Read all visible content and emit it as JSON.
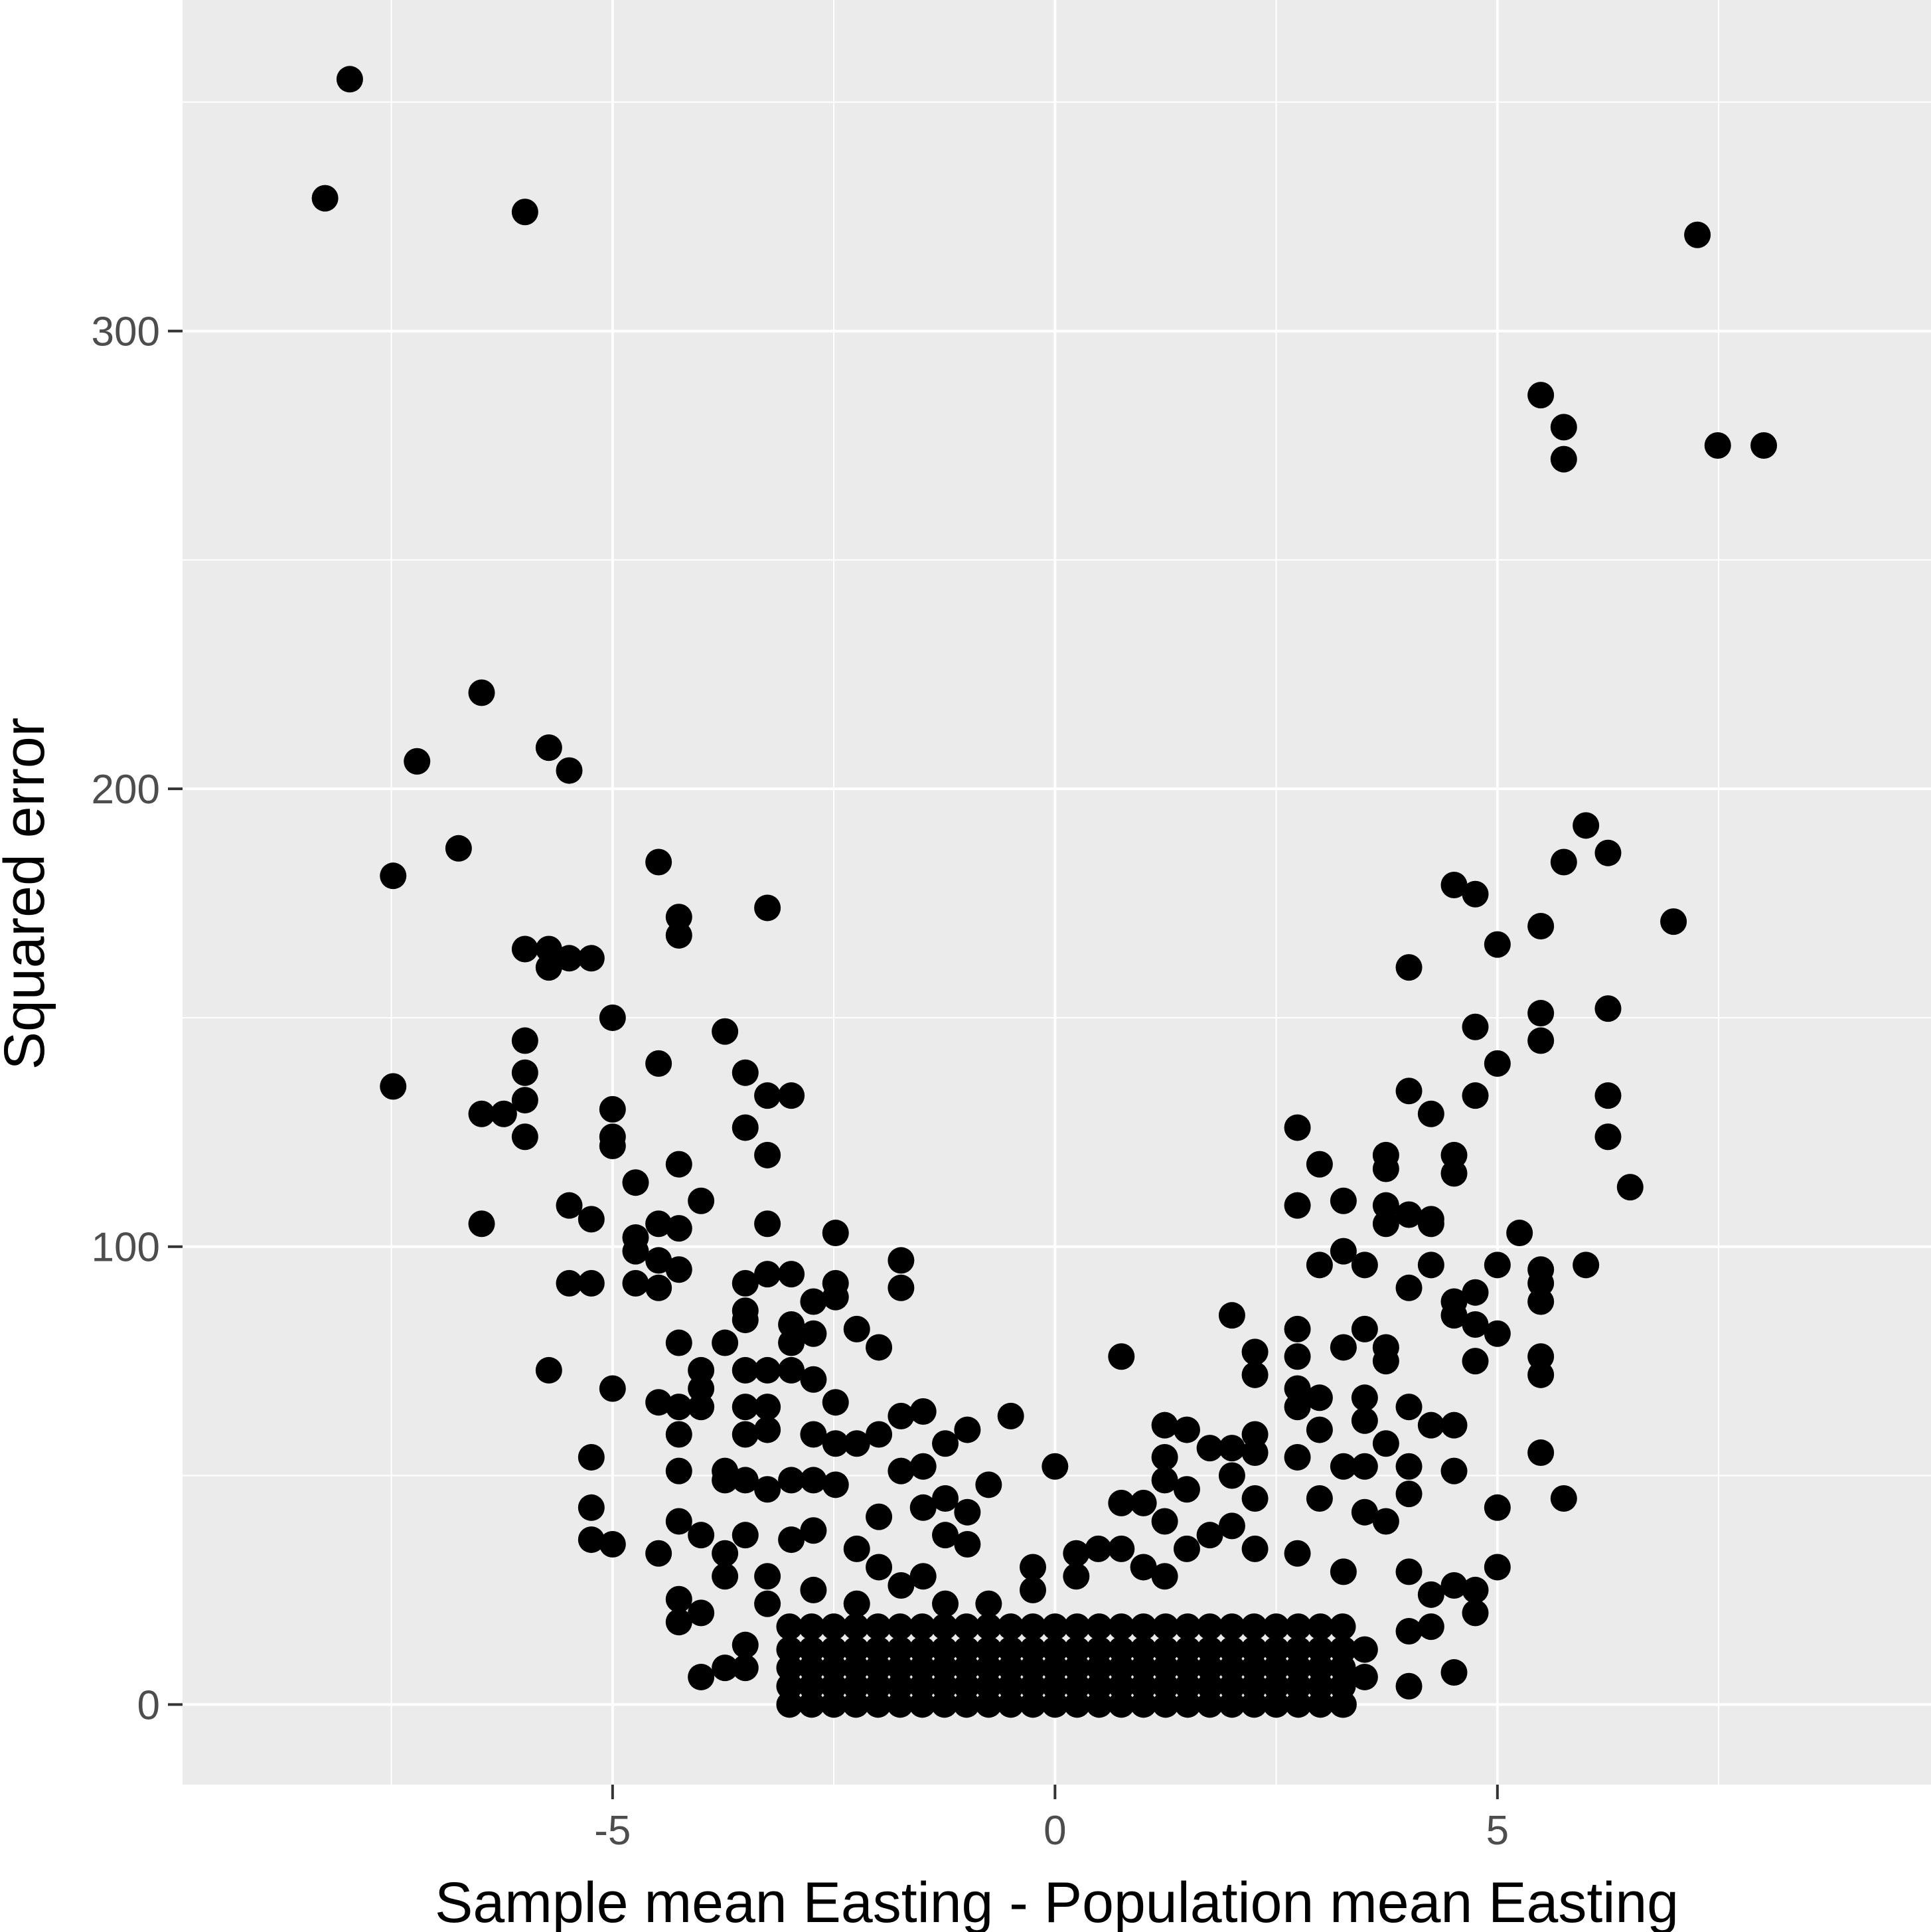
{
  "chart_data": {
    "type": "scatter",
    "x_label": "Sample mean Easting - Population mean Easting",
    "y_label": "Squared error",
    "color": "#000000",
    "xlim": [
      -9.86,
      9.9
    ],
    "ylim": [
      -17.5,
      372.3
    ],
    "xticks": [
      -5,
      0,
      5
    ],
    "yticks": [
      0,
      100,
      200,
      300
    ],
    "x_minor_grid": [
      -7.5,
      -2.5,
      2.5,
      7.5
    ],
    "y_minor_grid": [
      50,
      150,
      250,
      350
    ],
    "grid": true,
    "x": [
      -8.25,
      -7.97,
      -5.99,
      7.26,
      5.49,
      5.75,
      5.75,
      7.49,
      8.01,
      -6.48,
      -7.21,
      -5.72,
      -5.49,
      -6.74,
      -7.48,
      -4.48,
      -4.25,
      -4.25,
      -3.25,
      -5.99,
      -5.72,
      -5.72,
      -5.49,
      -5.24,
      -5.0,
      -3.73,
      -5.99,
      -5.99,
      -4.48,
      -3.5,
      -7.48,
      -5.99,
      -3.25,
      -2.98,
      -6.48,
      -6.23,
      -5.0,
      -5.99,
      -5.0,
      -5.0,
      -3.5,
      -3.25,
      -4.25,
      -4.74,
      -5.49,
      -4.0,
      -6.48,
      -5.24,
      -4.48,
      -4.25,
      -3.25,
      -4.74,
      -4.74,
      -4.48,
      -4.25,
      -5.49,
      -5.24,
      -4.74,
      -4.48,
      -3.5,
      -3.25,
      -2.98,
      -2.48,
      -2.48,
      -2.48,
      -2.73,
      -1.74,
      -1.74,
      -3.5,
      -3.5,
      -2.98,
      -2.98,
      -2.73,
      -2.24,
      -1.99,
      -4.25,
      -3.73,
      -5.72,
      -5.0,
      -4.0,
      -4.0,
      -3.5,
      -3.25,
      -2.98,
      -2.73,
      -4.48,
      -4.25,
      -4.0,
      -3.5,
      -2.48,
      -4.25,
      -5.24,
      -4.25,
      -3.73,
      -5.24,
      -5.24,
      -5.0,
      -4.48,
      -4.25,
      -4.0,
      -4.25,
      -4.25,
      -4.0,
      -4.0,
      -3.73,
      -3.5,
      -3.5,
      6.0,
      5.75,
      6.25,
      4.51,
      4.75,
      6.99,
      5.49,
      5.0,
      4.0,
      5.49,
      6.25,
      4.75,
      5.49,
      5.0,
      4.0,
      4.75,
      6.25,
      4.25,
      2.74,
      6.25,
      3.74,
      4.51,
      2.99,
      3.74,
      4.51,
      6.5,
      2.74,
      3.26,
      3.74,
      4.0,
      3.74,
      4.25,
      4.25,
      5.25,
      3.26,
      2.99,
      3.5,
      4.25,
      5.0,
      5.49,
      6.0,
      4.0,
      5.49,
      4.75,
      5.49,
      4.51,
      4.51,
      2.0,
      4.75,
      2.74,
      3.5,
      5.0,
      3.26,
      3.74,
      2.26,
      0.75,
      5.49,
      4.75,
      3.74,
      2.74,
      2.26,
      5.49,
      2.74,
      2.99,
      3.5,
      4.0,
      2.74,
      3.5,
      4.25,
      4.51,
      1.24,
      1.49,
      2.99,
      2.26,
      3.74,
      5.49,
      1.75,
      2.0,
      2.26,
      2.74,
      1.24,
      3.5,
      4.51,
      4.0,
      3.26,
      2.0,
      1.24,
      1.49,
      5.75,
      5.0,
      2.26,
      2.99,
      4.0,
      0.75,
      1.0,
      1.24,
      2.0,
      3.5,
      3.74,
      1.49,
      1.75,
      2.26,
      2.74,
      0.49,
      0.75,
      0.24,
      5.0,
      4.0,
      3.26,
      4.51,
      4.75,
      4.25,
      4.75,
      4.0,
      4.25,
      3.5,
      3.26,
      3.5,
      4.51,
      4.0,
      3.26,
      -0.5,
      -0.99,
      -1.49,
      -1.74,
      -1.24,
      -1.99,
      -2.24,
      -1.74,
      -1.49,
      -0.75,
      -1.24,
      -1.49,
      -0.99,
      -1.99,
      -1.24,
      -0.99,
      -2.73,
      -2.48,
      -2.73,
      -2.48,
      -3.25,
      -3.25,
      -3.5,
      -3.73,
      -3.5,
      -3.25,
      -2.98,
      -3.5,
      -3.73,
      -2.98,
      -2.73,
      -2.24,
      -1.99,
      -1.74,
      -1.49,
      -3.25,
      -3.73,
      -3.25,
      -2.73,
      -2.24,
      -1.24,
      -0.75,
      -0.25,
      -0.25,
      0.0,
      0.24,
      1.24,
      1.0,
      -3,
      -2.75,
      -2.5,
      -2.25,
      -2,
      -1.75,
      -1.5,
      -1.25,
      -1,
      -0.75,
      -0.5,
      -0.25,
      0,
      0.25,
      0.5,
      0.75,
      1,
      1.25,
      1.5,
      1.75,
      2,
      2.25,
      2.5,
      2.75,
      3,
      3.25,
      -3,
      -2.75,
      -2.5,
      -2.25,
      -2,
      -1.75,
      -1.5,
      -1.25,
      -1,
      -0.75,
      -0.5,
      -0.25,
      0,
      0.25,
      0.5,
      0.75,
      1,
      1.25,
      1.5,
      1.75,
      2,
      2.25,
      2.5,
      2.75,
      3,
      3.25,
      -3,
      -2.75,
      -2.5,
      -2.25,
      -2,
      -1.75,
      -1.5,
      -1.25,
      -1,
      -0.75,
      -0.5,
      -0.25,
      0,
      0.25,
      0.5,
      0.75,
      1,
      1.25,
      1.5,
      1.75,
      2,
      2.25,
      2.5,
      2.75,
      3,
      3.25,
      -3,
      -2.75,
      -2.5,
      -2.25,
      -2,
      -1.75,
      -1.5,
      -1.25,
      -1,
      -0.75,
      -0.5,
      -0.25,
      0,
      0.25,
      0.5,
      0.75,
      1,
      1.25,
      1.5,
      1.75,
      2,
      2.25,
      2.5,
      2.75,
      3,
      3.25,
      -3,
      -2.75,
      -2.5,
      -2.25,
      -2,
      -1.75,
      -1.5,
      -1.25,
      -1,
      -0.75,
      -0.5,
      -0.25,
      0,
      0.25,
      0.5,
      0.75,
      1,
      1.25,
      1.5,
      1.75,
      2,
      2.25,
      2.5,
      2.75,
      3,
      3.25
    ],
    "values": [
      329,
      355,
      326,
      321,
      286,
      279,
      272,
      275,
      275,
      221,
      206,
      209,
      204,
      187,
      181,
      184,
      172,
      168,
      174,
      165,
      165,
      161,
      163,
      163,
      150,
      147,
      145,
      138,
      140,
      138,
      135,
      132,
      133,
      133,
      129,
      129,
      130,
      124,
      124,
      122,
      126,
      120,
      118,
      114,
      109,
      110,
      105,
      106,
      105,
      104,
      105,
      102,
      99,
      97,
      95,
      92,
      92,
      92,
      91,
      92,
      94,
      94,
      103,
      92,
      89,
      88,
      97,
      91,
      86,
      84,
      83,
      79,
      81,
      82,
      78,
      79,
      79,
      73,
      69,
      73,
      69,
      73,
      73,
      73,
      71,
      66,
      65,
      65,
      65,
      66,
      59,
      54,
      51,
      51,
      43,
      36,
      35,
      33,
      40,
      37,
      23,
      18,
      20,
      6,
      8,
      13,
      8,
      192,
      184,
      186,
      179,
      177,
      171,
      170,
      166,
      161,
      151,
      152,
      148,
      145,
      140,
      134,
      133,
      133,
      129,
      126,
      124,
      120,
      120,
      118,
      117,
      116,
      113,
      109,
      110,
      109,
      107,
      105,
      106,
      105,
      103,
      99,
      96,
      96,
      96,
      96,
      95,
      96,
      91,
      92,
      90,
      88,
      88,
      85,
      85,
      83,
      82,
      82,
      81,
      78,
      78,
      77,
      76,
      76,
      75,
      75,
      76,
      72,
      72,
      69,
      67,
      67,
      65,
      65,
      62,
      61,
      61,
      61,
      60,
      60,
      59,
      57,
      55,
      56,
      56,
      55,
      54,
      54,
      52,
      51,
      52,
      52,
      50,
      49,
      47,
      45,
      43,
      45,
      45,
      46,
      44,
      44,
      40,
      39,
      42,
      40,
      34,
      37,
      34,
      33,
      34,
      34,
      33,
      30,
      29,
      29,
      26,
      25,
      24,
      20,
      16,
      17,
      12,
      12,
      6,
      7,
      4,
      0,
      63,
      60,
      64,
      63,
      57,
      59,
      57,
      51,
      52,
      48,
      45,
      43,
      42,
      41,
      37,
      35,
      59,
      57,
      49,
      48,
      65,
      60,
      59,
      49,
      49,
      47,
      49,
      37,
      33,
      36,
      38,
      34,
      30,
      26,
      28,
      28,
      28,
      22,
      25,
      22,
      22,
      22,
      30,
      25,
      52,
      28,
      28,
      30,
      0,
      0,
      0,
      0,
      0,
      0,
      0,
      0,
      0,
      0,
      0,
      0,
      0,
      0,
      0,
      0,
      0,
      0,
      0,
      0,
      0,
      0,
      0,
      0,
      0,
      0,
      4,
      4,
      4,
      4,
      4,
      4,
      4,
      4,
      4,
      4,
      4,
      4,
      4,
      4,
      4,
      4,
      4,
      4,
      4,
      4,
      4,
      4,
      4,
      4,
      4,
      4,
      8,
      8,
      8,
      8,
      8,
      8,
      8,
      8,
      8,
      8,
      8,
      8,
      8,
      8,
      8,
      8,
      8,
      8,
      8,
      8,
      8,
      8,
      8,
      8,
      8,
      8,
      12,
      12,
      12,
      12,
      12,
      12,
      12,
      12,
      12,
      12,
      12,
      12,
      12,
      12,
      12,
      12,
      12,
      12,
      12,
      12,
      12,
      12,
      12,
      12,
      12,
      12,
      17,
      17,
      17,
      17,
      17,
      17,
      17,
      17,
      17,
      17,
      17,
      17,
      17,
      17,
      17,
      17,
      17,
      17,
      17,
      17,
      17,
      17,
      17,
      17,
      17,
      17
    ]
  }
}
